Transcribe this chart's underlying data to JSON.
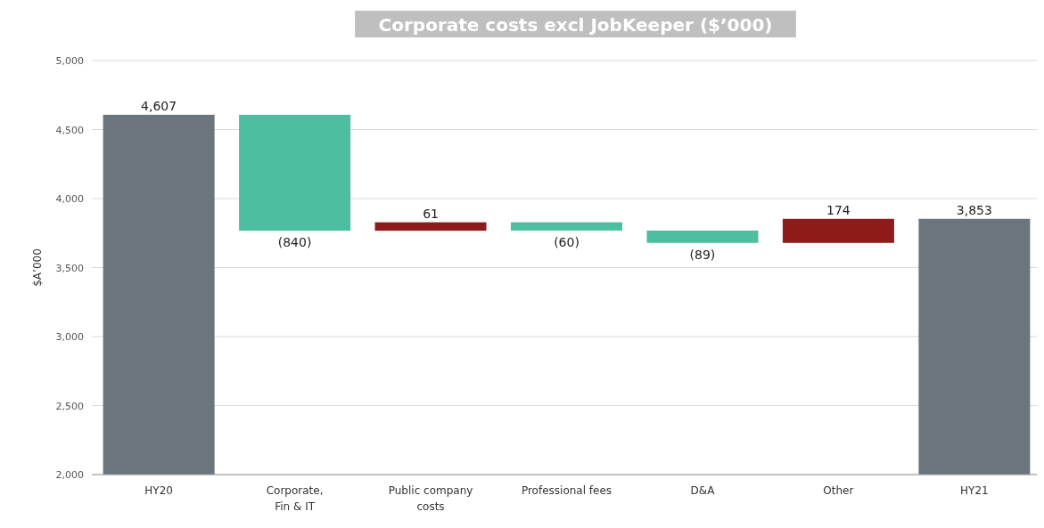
{
  "chart_data": {
    "type": "bar",
    "title": "Corporate costs excl JobKeeper ($’000)",
    "ylabel": "$A’000",
    "categories": [
      "HY20",
      "Corporate, Fin & IT",
      "Public company costs",
      "Professional fees",
      "D&A",
      "Other",
      "HY21"
    ],
    "values": [
      4607,
      -840,
      61,
      -60,
      -89,
      174,
      3853
    ],
    "base": [
      null,
      4607,
      3767,
      3828,
      3768,
      3679,
      null
    ],
    "colors": [
      "#6b757e",
      "#4dbfa0",
      "#8e1a1a",
      "#4dbfa0",
      "#4dbfa0",
      "#8e1a1a",
      "#6b757e"
    ],
    "value_labels": [
      "4,607",
      "(840)",
      "61",
      "(60)",
      "(89)",
      "174",
      "3,853"
    ],
    "ylim": [
      2000,
      5000
    ],
    "yticks": [
      {
        "value": 2000,
        "label": "2,000"
      },
      {
        "value": 2500,
        "label": "2,500"
      },
      {
        "value": 3000,
        "label": "3,000"
      },
      {
        "value": 3500,
        "label": "3,500"
      },
      {
        "value": 4000,
        "label": "4,000"
      },
      {
        "value": 4500,
        "label": "4,500"
      },
      {
        "value": 5000,
        "label": "5,000"
      }
    ],
    "grid": "y"
  }
}
